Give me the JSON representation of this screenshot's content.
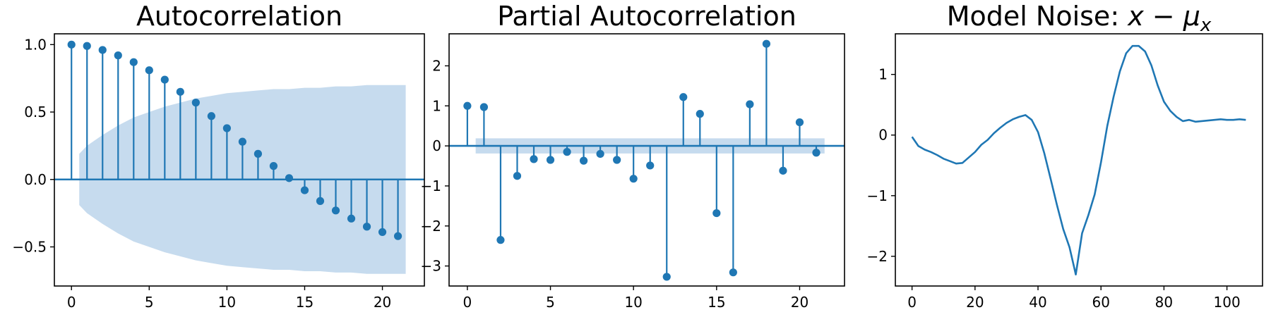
{
  "chart_data": [
    {
      "type": "stem",
      "title": "Autocorrelation",
      "xlabel": "",
      "ylabel": "",
      "x": [
        0,
        1,
        2,
        3,
        4,
        5,
        6,
        7,
        8,
        9,
        10,
        11,
        12,
        13,
        14,
        15,
        16,
        17,
        18,
        19,
        20,
        21
      ],
      "values": [
        1.0,
        0.99,
        0.96,
        0.92,
        0.87,
        0.81,
        0.74,
        0.65,
        0.57,
        0.47,
        0.38,
        0.28,
        0.19,
        0.1,
        0.01,
        -0.08,
        -0.16,
        -0.23,
        -0.29,
        -0.35,
        -0.39,
        -0.42
      ],
      "confidence_band": {
        "x": [
          0.5,
          1,
          2,
          3,
          4,
          5,
          6,
          7,
          8,
          9,
          10,
          11,
          12,
          13,
          14,
          15,
          16,
          17,
          18,
          19,
          20,
          21.5
        ],
        "upper": [
          0.19,
          0.25,
          0.33,
          0.4,
          0.46,
          0.5,
          0.54,
          0.57,
          0.6,
          0.62,
          0.64,
          0.65,
          0.66,
          0.67,
          0.67,
          0.68,
          0.68,
          0.69,
          0.69,
          0.7,
          0.7,
          0.7
        ],
        "lower": [
          -0.19,
          -0.25,
          -0.33,
          -0.4,
          -0.46,
          -0.5,
          -0.54,
          -0.57,
          -0.6,
          -0.62,
          -0.64,
          -0.65,
          -0.66,
          -0.67,
          -0.67,
          -0.68,
          -0.68,
          -0.69,
          -0.69,
          -0.7,
          -0.7,
          -0.7
        ]
      },
      "xlim": [
        -1.1,
        22.7
      ],
      "ylim": [
        -0.79,
        1.08
      ],
      "xticks": [
        0,
        5,
        10,
        15,
        20
      ],
      "xtick_labels": [
        "0",
        "5",
        "10",
        "15",
        "20"
      ],
      "yticks": [
        1.0,
        0.5,
        0.0,
        -0.5
      ],
      "ytick_labels": [
        "1.0",
        "0.5",
        "0.0",
        "−0.5"
      ],
      "grid": false,
      "colors": {
        "stem": "#1f77b4",
        "band": "#c6dbee",
        "baseline": "#1f77b4"
      }
    },
    {
      "type": "stem",
      "title": "Partial Autocorrelation",
      "xlabel": "",
      "ylabel": "",
      "x": [
        0,
        1,
        2,
        3,
        4,
        5,
        6,
        7,
        8,
        9,
        10,
        11,
        12,
        13,
        14,
        15,
        16,
        17,
        18,
        19,
        20,
        21
      ],
      "values": [
        1.0,
        0.97,
        -2.35,
        -0.75,
        -0.33,
        -0.35,
        -0.15,
        -0.37,
        -0.2,
        -0.35,
        -0.82,
        -0.49,
        -3.27,
        1.22,
        0.8,
        -1.68,
        -3.16,
        1.04,
        2.55,
        -0.62,
        0.59,
        -0.17
      ],
      "confidence_band": {
        "x": [
          0.5,
          21.5
        ],
        "upper": [
          0.19,
          0.19
        ],
        "lower": [
          -0.19,
          -0.19
        ]
      },
      "xlim": [
        -1.1,
        22.7
      ],
      "ylim": [
        -3.5,
        2.8
      ],
      "xticks": [
        0,
        5,
        10,
        15,
        20
      ],
      "xtick_labels": [
        "0",
        "5",
        "10",
        "15",
        "20"
      ],
      "yticks": [
        2,
        1,
        0,
        -1,
        -2,
        -3
      ],
      "ytick_labels": [
        "2",
        "1",
        "0",
        "−1",
        "−2",
        "−3"
      ],
      "grid": false,
      "colors": {
        "stem": "#1f77b4",
        "band": "#c6dbee",
        "baseline": "#1f77b4"
      }
    },
    {
      "type": "line",
      "title": "Model Noise: ",
      "title_math": "x − μ",
      "title_math_subscript": "x",
      "xlabel": "",
      "ylabel": "",
      "series": [
        {
          "x": [
            0,
            2,
            4,
            6,
            8,
            10,
            12,
            14,
            16,
            18,
            20,
            22,
            24,
            26,
            28,
            30,
            32,
            34,
            36,
            38,
            40,
            42,
            44,
            46,
            48,
            50,
            52,
            54,
            56,
            58,
            60,
            62,
            64,
            66,
            68,
            70,
            72,
            74,
            76,
            78,
            80,
            82,
            84,
            86,
            88,
            90,
            92,
            94,
            96,
            98,
            100,
            102,
            104,
            106
          ],
          "values": [
            -0.03,
            -0.18,
            -0.24,
            -0.28,
            -0.33,
            -0.39,
            -0.43,
            -0.47,
            -0.46,
            -0.37,
            -0.28,
            -0.16,
            -0.08,
            0.03,
            0.12,
            0.2,
            0.26,
            0.3,
            0.33,
            0.25,
            0.05,
            -0.3,
            -0.72,
            -1.15,
            -1.55,
            -1.85,
            -2.3,
            -1.62,
            -1.32,
            -0.98,
            -0.45,
            0.15,
            0.63,
            1.05,
            1.35,
            1.47,
            1.47,
            1.38,
            1.15,
            0.82,
            0.55,
            0.4,
            0.3,
            0.23,
            0.25,
            0.22,
            0.23,
            0.24,
            0.25,
            0.26,
            0.25,
            0.25,
            0.26,
            0.25
          ]
        }
      ],
      "xlim": [
        -5.3,
        111.3
      ],
      "ylim": [
        -2.49,
        1.67
      ],
      "xticks": [
        0,
        20,
        40,
        60,
        80,
        100
      ],
      "xtick_labels": [
        "0",
        "20",
        "40",
        "60",
        "80",
        "100"
      ],
      "yticks": [
        1,
        0,
        -1,
        -2
      ],
      "ytick_labels": [
        "1",
        "0",
        "−1",
        "−2"
      ],
      "grid": false,
      "colors": {
        "line": "#1f77b4"
      }
    }
  ]
}
